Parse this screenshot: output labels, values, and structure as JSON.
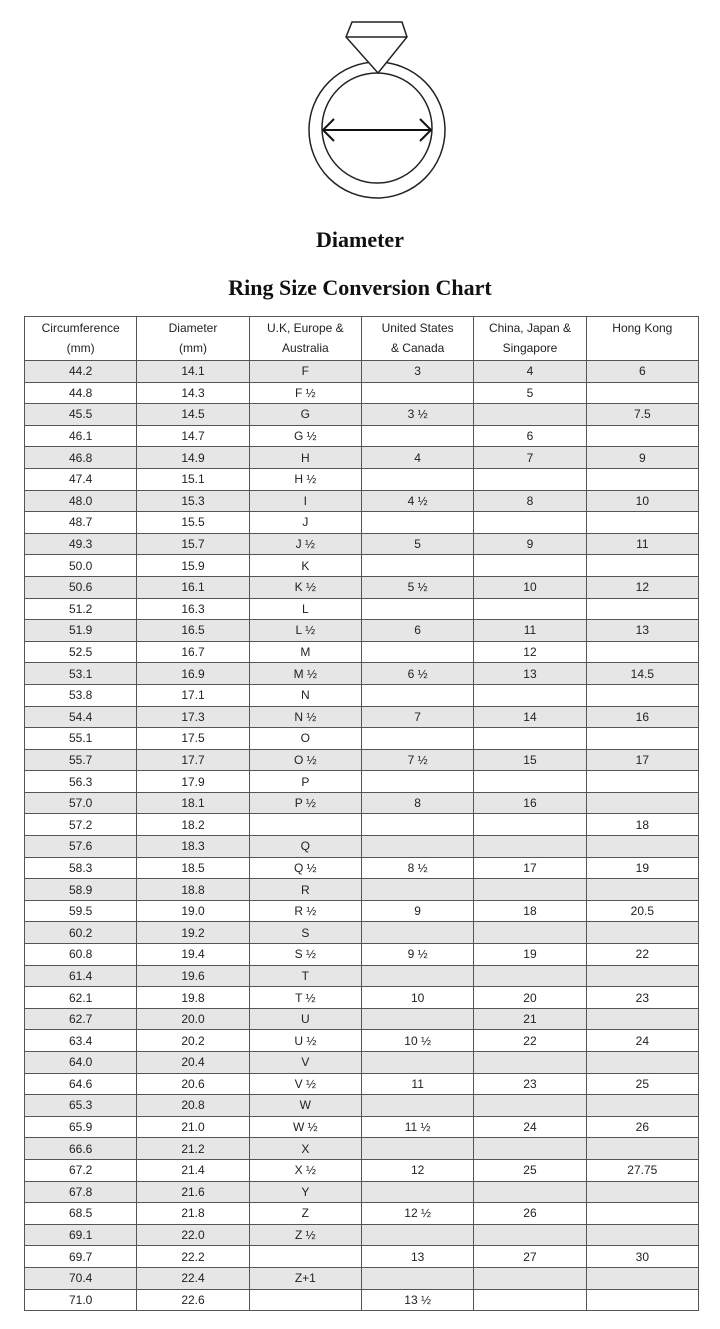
{
  "illustration": {
    "label": "Diameter",
    "icon": "ring-diameter-illustration"
  },
  "title": "Ring Size Conversion Chart",
  "colors": {
    "stripe": "#e6e6e6",
    "border": "#555555"
  },
  "columns": [
    [
      "Circumference",
      "(mm)"
    ],
    [
      "Diameter",
      "(mm)"
    ],
    [
      "U.K, Europe &",
      "Australia"
    ],
    [
      "United States",
      "& Canada"
    ],
    [
      "China, Japan &",
      "Singapore"
    ],
    [
      "Hong Kong",
      ""
    ]
  ],
  "rows": [
    [
      "44.2",
      "14.1",
      "F",
      "3",
      "4",
      "6"
    ],
    [
      "44.8",
      "14.3",
      "F ½",
      "",
      "5",
      ""
    ],
    [
      "45.5",
      "14.5",
      "G",
      "3 ½",
      "",
      "7.5"
    ],
    [
      "46.1",
      "14.7",
      "G ½",
      "",
      "6",
      ""
    ],
    [
      "46.8",
      "14.9",
      "H",
      "4",
      "7",
      "9"
    ],
    [
      "47.4",
      "15.1",
      "H ½",
      "",
      "",
      ""
    ],
    [
      "48.0",
      "15.3",
      "I",
      "4 ½",
      "8",
      "10"
    ],
    [
      "48.7",
      "15.5",
      "J",
      "",
      "",
      ""
    ],
    [
      "49.3",
      "15.7",
      "J ½",
      "5",
      "9",
      "11"
    ],
    [
      "50.0",
      "15.9",
      "K",
      "",
      "",
      ""
    ],
    [
      "50.6",
      "16.1",
      "K ½",
      "5 ½",
      "10",
      "12"
    ],
    [
      "51.2",
      "16.3",
      "L",
      "",
      "",
      ""
    ],
    [
      "51.9",
      "16.5",
      "L ½",
      "6",
      "11",
      "13"
    ],
    [
      "52.5",
      "16.7",
      "M",
      "",
      "12",
      ""
    ],
    [
      "53.1",
      "16.9",
      "M ½",
      "6 ½",
      "13",
      "14.5"
    ],
    [
      "53.8",
      "17.1",
      "N",
      "",
      "",
      ""
    ],
    [
      "54.4",
      "17.3",
      "N ½",
      "7",
      "14",
      "16"
    ],
    [
      "55.1",
      "17.5",
      "O",
      "",
      "",
      ""
    ],
    [
      "55.7",
      "17.7",
      "O ½",
      "7 ½",
      "15",
      "17"
    ],
    [
      "56.3",
      "17.9",
      "P",
      "",
      "",
      ""
    ],
    [
      "57.0",
      "18.1",
      "P ½",
      "8",
      "16",
      ""
    ],
    [
      "57.2",
      "18.2",
      "",
      "",
      "",
      "18"
    ],
    [
      "57.6",
      "18.3",
      "Q",
      "",
      "",
      ""
    ],
    [
      "58.3",
      "18.5",
      "Q ½",
      "8 ½",
      "17",
      "19"
    ],
    [
      "58.9",
      "18.8",
      "R",
      "",
      "",
      ""
    ],
    [
      "59.5",
      "19.0",
      "R ½",
      "9",
      "18",
      "20.5"
    ],
    [
      "60.2",
      "19.2",
      "S",
      "",
      "",
      ""
    ],
    [
      "60.8",
      "19.4",
      "S ½",
      "9 ½",
      "19",
      "22"
    ],
    [
      "61.4",
      "19.6",
      "T",
      "",
      "",
      ""
    ],
    [
      "62.1",
      "19.8",
      "T ½",
      "10",
      "20",
      "23"
    ],
    [
      "62.7",
      "20.0",
      "U",
      "",
      "21",
      ""
    ],
    [
      "63.4",
      "20.2",
      "U ½",
      "10 ½",
      "22",
      "24"
    ],
    [
      "64.0",
      "20.4",
      "V",
      "",
      "",
      ""
    ],
    [
      "64.6",
      "20.6",
      "V ½",
      "11",
      "23",
      "25"
    ],
    [
      "65.3",
      "20.8",
      "W",
      "",
      "",
      ""
    ],
    [
      "65.9",
      "21.0",
      "W ½",
      "11 ½",
      "24",
      "26"
    ],
    [
      "66.6",
      "21.2",
      "X",
      "",
      "",
      ""
    ],
    [
      "67.2",
      "21.4",
      "X ½",
      "12",
      "25",
      "27.75"
    ],
    [
      "67.8",
      "21.6",
      "Y",
      "",
      "",
      ""
    ],
    [
      "68.5",
      "21.8",
      "Z",
      "12 ½",
      "26",
      ""
    ],
    [
      "69.1",
      "22.0",
      "Z ½",
      "",
      "",
      ""
    ],
    [
      "69.7",
      "22.2",
      "",
      "13",
      "27",
      "30"
    ],
    [
      "70.4",
      "22.4",
      "Z+1",
      "",
      "",
      ""
    ],
    [
      "71.0",
      "22.6",
      "",
      "13 ½",
      "",
      ""
    ]
  ]
}
